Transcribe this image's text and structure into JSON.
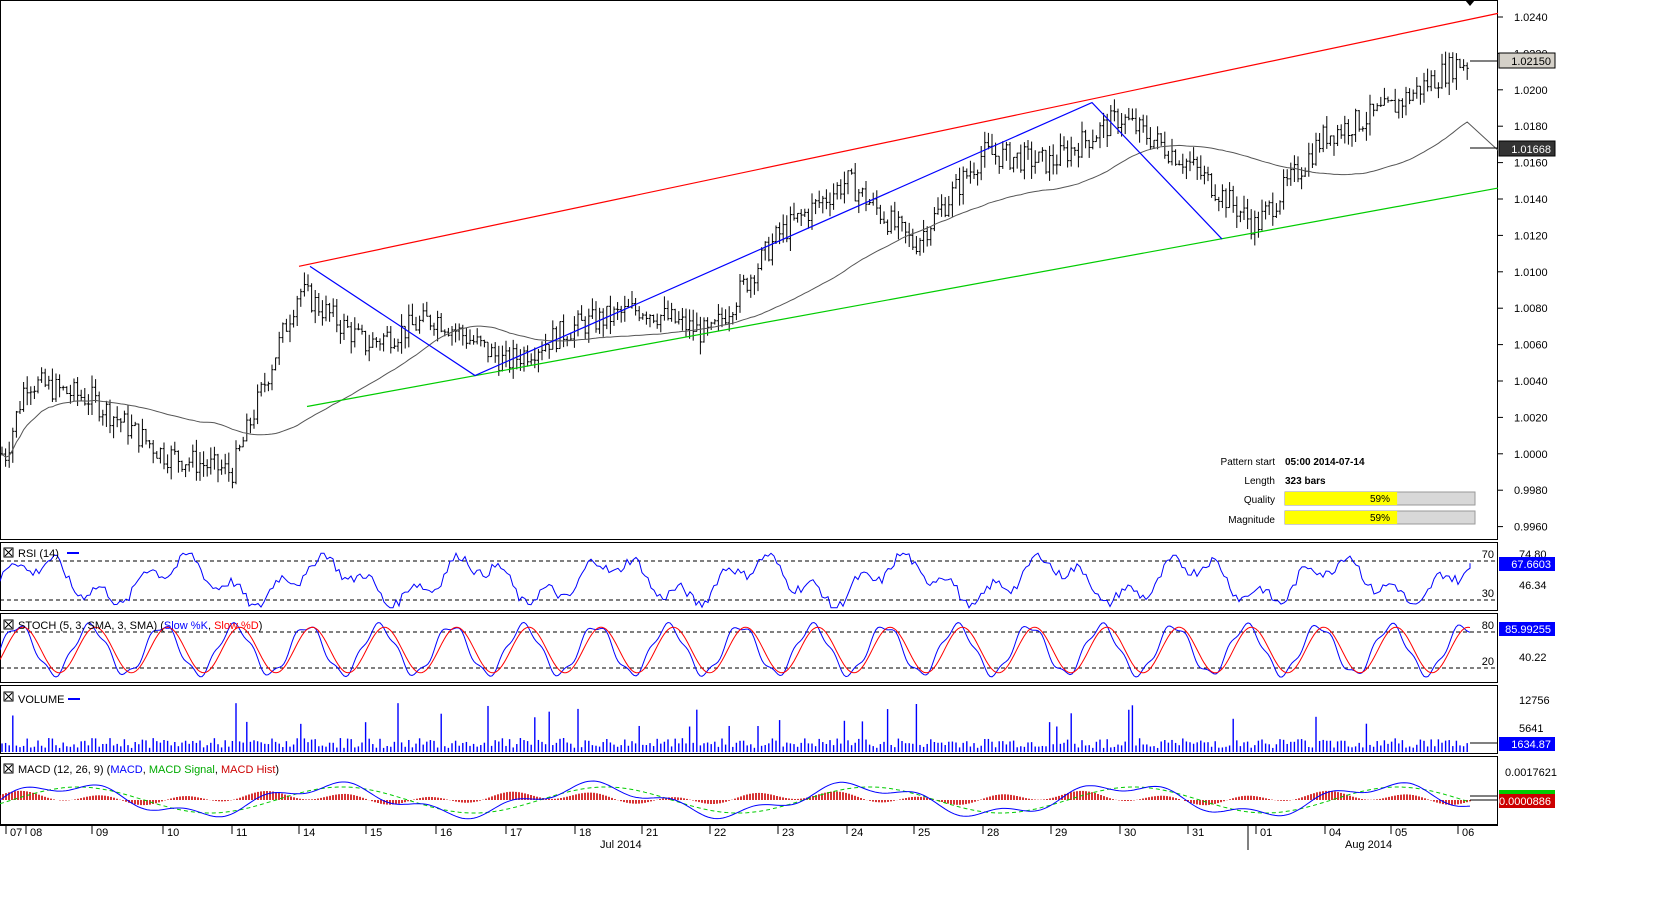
{
  "main_chart": {
    "price_ticks": [
      "1.0240",
      "1.0220",
      "1.0200",
      "1.0180",
      "1.0160",
      "1.0140",
      "1.0120",
      "1.0100",
      "1.0080",
      "1.0060",
      "1.0040",
      "1.0020",
      "1.0000",
      "0.9980",
      "0.9960"
    ],
    "current_price_label": "1.02150",
    "ma_price_label": "1.01668",
    "info": {
      "pattern_start_label": "Pattern start",
      "pattern_start_value": "05:00 2014-07-14",
      "length_label": "Length",
      "length_value": "323 bars",
      "quality_label": "Quality",
      "quality_value": "59%",
      "magnitude_label": "Magnitude",
      "magnitude_value": "59%"
    }
  },
  "rsi": {
    "title": "RSI (14)",
    "levels": [
      "70",
      "30"
    ],
    "ticks": [
      "74.80",
      "46.34"
    ],
    "current": "67.6603"
  },
  "stoch": {
    "title_prefix": "STOCH (5, 3, SMA, 3, SMA)",
    "k_label": "Slow %K",
    "d_label": "Slow %D",
    "levels": [
      "80",
      "20"
    ],
    "ticks": [
      "40.22"
    ],
    "current": "85.99255"
  },
  "volume": {
    "title": "VOLUME",
    "ticks": [
      "12756",
      "5641"
    ],
    "current": "1634.87"
  },
  "macd": {
    "title_prefix": "MACD (12, 26, 9)",
    "macd_label": "MACD",
    "signal_label": "MACD Signal",
    "hist_label": "MACD Hist",
    "ticks": [
      "0.0017621"
    ],
    "current": "0.0000886"
  },
  "x_axis": {
    "days": [
      "07",
      "08",
      "09",
      "10",
      "11",
      "14",
      "15",
      "16",
      "17",
      "18",
      "21",
      "22",
      "23",
      "24",
      "25",
      "28",
      "29",
      "30",
      "31",
      "01",
      "04",
      "05",
      "06"
    ],
    "months": [
      "Jul 2014",
      "Aug 2014"
    ]
  },
  "colors": {
    "resistance": "#ff0000",
    "support": "#00cc00",
    "zigzag": "#0000ff",
    "ma": "#555555",
    "quality_fill": "#ffff00",
    "rsi": "#0000ff",
    "stoch_k": "#0000ff",
    "stoch_d": "#ff0000",
    "volume": "#0000ff",
    "macd": "#0000ff",
    "signal": "#00cc00",
    "hist": "#cc0000"
  },
  "chart_data": {
    "type": "line",
    "title": "",
    "xlabel": "",
    "ylabel": "",
    "ylim": [
      0.995,
      1.0245
    ],
    "x": [
      "2014-07-07",
      "2014-07-08",
      "2014-07-09",
      "2014-07-10",
      "2014-07-11",
      "2014-07-14",
      "2014-07-15",
      "2014-07-16",
      "2014-07-17",
      "2014-07-18",
      "2014-07-21",
      "2014-07-22",
      "2014-07-23",
      "2014-07-24",
      "2014-07-25",
      "2014-07-28",
      "2014-07-29",
      "2014-07-30",
      "2014-07-31",
      "2014-08-01",
      "2014-08-04",
      "2014-08-05",
      "2014-08-06"
    ],
    "price_path": [
      1.0,
      1.004,
      1.003,
      1.0,
      0.999,
      1.009,
      1.006,
      1.0075,
      1.005,
      1.007,
      1.008,
      1.0065,
      1.012,
      1.015,
      1.0115,
      1.0165,
      1.016,
      1.0185,
      1.016,
      1.0125,
      1.0175,
      1.019,
      1.0215
    ],
    "grid": false,
    "pattern": {
      "name": "Channel Up",
      "resistance": {
        "start": [
          "2014-07-14",
          1.0103
        ],
        "end": [
          "2014-08-06",
          1.0242
        ]
      },
      "support": {
        "start": [
          "2014-07-14",
          1.0026
        ],
        "end": [
          "2014-08-06",
          1.0146
        ]
      },
      "zigzag": [
        [
          "2014-07-14",
          1.0103
        ],
        [
          "2014-07-16",
          1.0043
        ],
        [
          "2014-07-29",
          1.0193
        ],
        [
          "2014-07-31",
          1.0118
        ]
      ]
    },
    "last_price": 1.0215,
    "moving_average_last": 1.01668,
    "indicators": {
      "rsi": {
        "period": 14,
        "last": 67.6603,
        "levels": [
          70,
          30
        ]
      },
      "stoch": {
        "params": "5, 3, SMA, 3, SMA",
        "last": 85.99255,
        "levels": [
          80,
          20
        ]
      },
      "volume": {
        "last": 1634.87
      },
      "macd": {
        "params": "12, 26, 9",
        "last": 8.86e-05
      }
    }
  }
}
